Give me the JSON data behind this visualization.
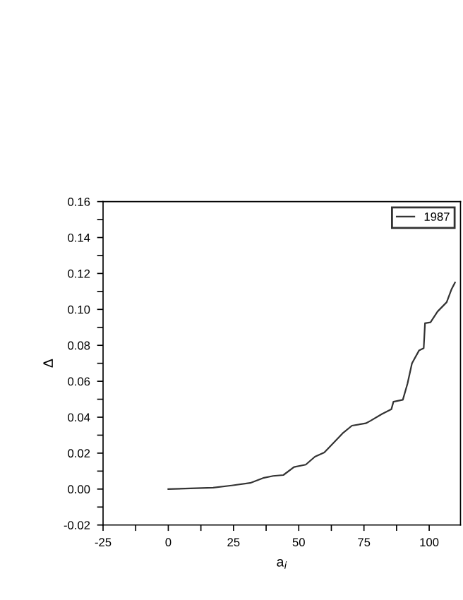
{
  "chart_data": {
    "type": "line",
    "xlabel": "a$_{i}$",
    "ylabel": "Δ",
    "xlim": [
      -25,
      112
    ],
    "ylim": [
      -0.02,
      0.16
    ],
    "xticks": [
      -25,
      {
        "value": -12.5,
        "label": null
      },
      0,
      {
        "value": 12.5,
        "label": null
      },
      25,
      {
        "value": 37.5,
        "label": null
      },
      50,
      {
        "value": 62.5,
        "label": null
      },
      75,
      {
        "value": 87.5,
        "label": null
      },
      100
    ],
    "yticks": [
      {
        "value": -0.02,
        "label": "-0.02"
      },
      {
        "value": -0.01,
        "label": null
      },
      {
        "value": 0,
        "label": "0.00"
      },
      {
        "value": 0.01,
        "label": null
      },
      {
        "value": 0.02,
        "label": "0.02"
      },
      {
        "value": 0.03,
        "label": null
      },
      {
        "value": 0.04,
        "label": "0.04"
      },
      {
        "value": 0.05,
        "label": null
      },
      {
        "value": 0.06,
        "label": "0.06"
      },
      {
        "value": 0.07,
        "label": null
      },
      {
        "value": 0.08,
        "label": "0.08"
      },
      {
        "value": 0.09,
        "label": null
      },
      {
        "value": 0.1,
        "label": "0.10"
      },
      {
        "value": 0.11,
        "label": null
      },
      {
        "value": 0.12,
        "label": "0.12"
      },
      {
        "value": 0.13,
        "label": null
      },
      {
        "value": 0.14,
        "label": "0.14"
      },
      {
        "value": 0.15,
        "label": null
      },
      {
        "value": 0.16,
        "label": "0.16"
      }
    ],
    "grid": false,
    "legend": "top right",
    "marker": "none",
    "line_style": "solid",
    "series": [
      {
        "name": "1987",
        "color": "#333333",
        "x": [
          0,
          17.2,
          24.3,
          31.4,
          36.7,
          40.2,
          44.1,
          48.2,
          52.7,
          56.2,
          59.8,
          62.4,
          66.8,
          70.4,
          75.7,
          77.5,
          81.9,
          85.5,
          86.3,
          89.9,
          91.7,
          93.4,
          96.1,
          97.9,
          98.4,
          100.5,
          103.2,
          106.7,
          108.5,
          109.9
        ],
        "values": [
          0,
          0.0008,
          0.002,
          0.0034,
          0.0063,
          0.0073,
          0.0078,
          0.0123,
          0.0136,
          0.018,
          0.0204,
          0.0243,
          0.031,
          0.0353,
          0.0366,
          0.038,
          0.0418,
          0.0444,
          0.0486,
          0.0497,
          0.0588,
          0.07,
          0.0771,
          0.0784,
          0.0923,
          0.0928,
          0.0988,
          0.104,
          0.111,
          0.115
        ]
      }
    ]
  }
}
